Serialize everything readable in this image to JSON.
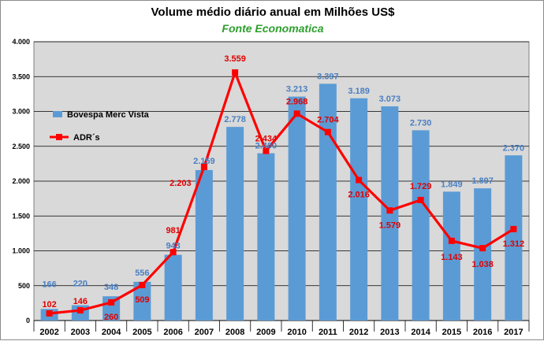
{
  "colors": {
    "bar": "#5b9bd5",
    "line": "#ff0000",
    "plot_bg": "#d9d9d9",
    "subtitle": "#2e9f2e",
    "bar_label": "#4a7fc1",
    "line_label": "#e00000"
  },
  "chart_data": {
    "type": "bar",
    "title": "Volume médio diário anual em Milhões US$",
    "subtitle": "Fonte Economatica",
    "categories": [
      "2002",
      "2003",
      "2004",
      "2005",
      "2006",
      "2007",
      "2008",
      "2009",
      "2010",
      "2011",
      "2012",
      "2013",
      "2014",
      "2015",
      "2016",
      "2017"
    ],
    "series": [
      {
        "name": "Bovespa Merc Vista",
        "type": "bar",
        "values": [
          166,
          220,
          348,
          556,
          943,
          2159,
          2778,
          2400,
          3213,
          3397,
          3189,
          3073,
          2730,
          1849,
          1897,
          2370
        ],
        "labels": [
          "166",
          "220",
          "348",
          "556",
          "943",
          "2.159",
          "2.778",
          "2.400",
          "3.213",
          "3.397",
          "3.189",
          "3.073",
          "2.730",
          "1.849",
          "1.897",
          "2.370"
        ]
      },
      {
        "name": "ADR´s",
        "type": "line",
        "values": [
          102,
          146,
          260,
          509,
          981,
          2203,
          3559,
          2434,
          2968,
          2704,
          2016,
          1579,
          1729,
          1143,
          1038,
          1312
        ],
        "labels": [
          "102",
          "146",
          "260",
          "509",
          "981",
          "2.203",
          "3.559",
          "2.434",
          "2.968",
          "2.704",
          "2.016",
          "1.579",
          "1.729",
          "1.143",
          "1.038",
          "1.312"
        ]
      }
    ],
    "yticks": [
      0,
      500,
      1000,
      1500,
      2000,
      2500,
      3000,
      3500,
      4000
    ],
    "ytick_labels": [
      "0",
      "500",
      "1.000",
      "1.500",
      "2.000",
      "2.500",
      "3.000",
      "3.500",
      "4.000"
    ],
    "ylim": [
      0,
      4000
    ],
    "grid": true,
    "legend_position": "left"
  }
}
